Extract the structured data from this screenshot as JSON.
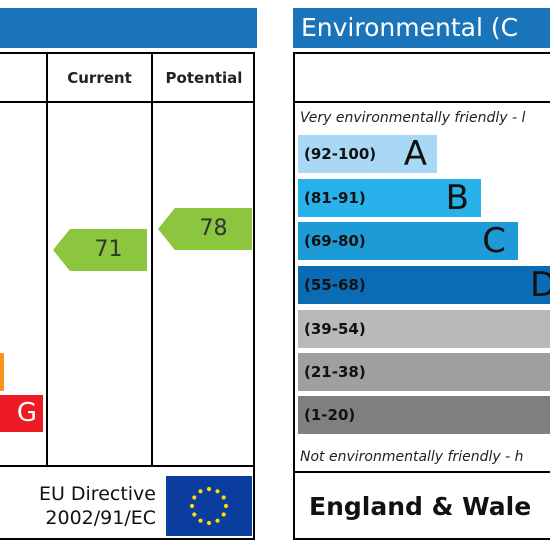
{
  "left_panel": {
    "columns": {
      "current": "Current",
      "potential": "Potential"
    },
    "bands": [
      {
        "letter": "",
        "color": "#f7941d"
      },
      {
        "letter": "G",
        "color": "#ed1c24"
      }
    ],
    "ratings": {
      "current": "71",
      "potential": "78"
    },
    "arrow_color": "#8cc63f",
    "footer": {
      "line1": "EU Directive",
      "line2": "2002/91/EC"
    }
  },
  "right_panel": {
    "title": "Environmental (C",
    "top_note": "Very environmentally friendly - l",
    "bottom_note": "Not environmentally friendly - h",
    "bands": [
      {
        "range": "(92-100)",
        "letter": "A",
        "color": "#a9d8f5"
      },
      {
        "range": "(81-91)",
        "letter": "B",
        "color": "#28b1ea"
      },
      {
        "range": "(69-80)",
        "letter": "C",
        "color": "#1e9ad7"
      },
      {
        "range": "(55-68)",
        "letter": "D",
        "color": "#0b6bb5"
      },
      {
        "range": "(39-54)",
        "letter": "",
        "color": "#b9b9b9"
      },
      {
        "range": "(21-38)",
        "letter": "",
        "color": "#9f9f9f"
      },
      {
        "range": "(1-20)",
        "letter": "",
        "color": "#808080"
      }
    ],
    "footer_region": "England & Wale"
  },
  "colors": {
    "header_blue": "#1a74ba",
    "eu_flag_blue": "#0a3d9e",
    "eu_star_yellow": "#ffdd00"
  }
}
